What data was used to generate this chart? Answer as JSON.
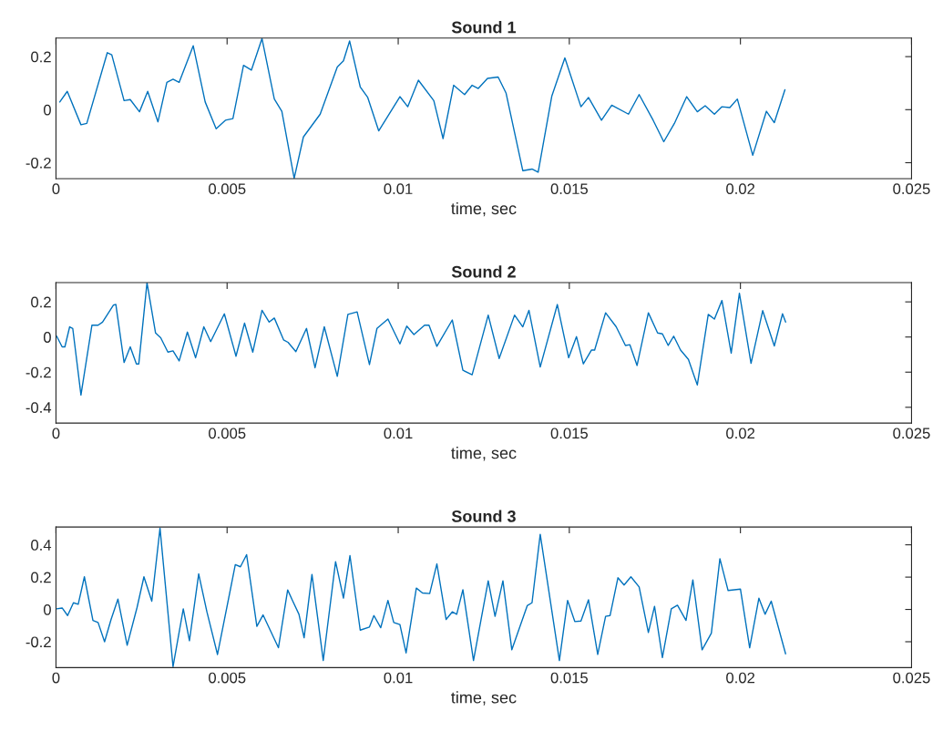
{
  "chart_data": [
    {
      "type": "line",
      "title": "Sound 1",
      "xlabel": "time, sec",
      "xlim": [
        0,
        0.025
      ],
      "xticks": [
        0,
        0.005,
        0.01,
        0.015,
        0.02,
        0.025
      ],
      "ylim": [
        -0.26,
        0.27
      ],
      "yticks": [
        -0.2,
        0,
        0.2
      ],
      "grid": false,
      "series": [
        {
          "color": "#0072bd",
          "x": [
            0.00011,
            0.00033,
            0.00073,
            0.0009,
            0.0015,
            0.00163,
            0.00199,
            0.00217,
            0.00244,
            0.00268,
            0.00298,
            0.00324,
            0.00342,
            0.0036,
            0.00401,
            0.00436,
            0.00468,
            0.00495,
            0.00517,
            0.00548,
            0.00571,
            0.00602,
            0.00638,
            0.0066,
            0.00696,
            0.00723,
            0.00772,
            0.00822,
            0.0084,
            0.00858,
            0.00889,
            0.00911,
            0.00943,
            0.01005,
            0.01028,
            0.01059,
            0.01104,
            0.01131,
            0.01162,
            0.01194,
            0.01216,
            0.01234,
            0.01261,
            0.01292,
            0.01315,
            0.01364,
            0.01391,
            0.01409,
            0.01449,
            0.01487,
            0.01534,
            0.01556,
            0.01594,
            0.01624,
            0.01673,
            0.01704,
            0.01745,
            0.01776,
            0.01807,
            0.01843,
            0.01874,
            0.01897,
            0.01924,
            0.01946,
            0.01969,
            0.01991,
            0.02036,
            0.02076,
            0.02099,
            0.0213
          ],
          "values": [
            0.029,
            0.069,
            -0.057,
            -0.052,
            0.215,
            0.207,
            0.034,
            0.038,
            -0.008,
            0.069,
            -0.046,
            0.103,
            0.115,
            0.103,
            0.241,
            0.029,
            -0.072,
            -0.04,
            -0.034,
            0.167,
            0.149,
            0.268,
            0.04,
            -0.006,
            -0.259,
            -0.103,
            -0.017,
            0.161,
            0.184,
            0.259,
            0.086,
            0.046,
            -0.08,
            0.049,
            0.011,
            0.111,
            0.034,
            -0.109,
            0.092,
            0.057,
            0.092,
            0.08,
            0.118,
            0.123,
            0.063,
            -0.23,
            -0.224,
            -0.236,
            0.052,
            0.195,
            0.011,
            0.046,
            -0.04,
            0.017,
            -0.017,
            0.057,
            -0.04,
            -0.121,
            -0.052,
            0.049,
            -0.008,
            0.015,
            -0.017,
            0.011,
            0.008,
            0.04,
            -0.172,
            -0.006,
            -0.049,
            0.075
          ]
        }
      ]
    },
    {
      "type": "line",
      "title": "Sound 2",
      "xlabel": "time, sec",
      "xlim": [
        0,
        0.025
      ],
      "xticks": [
        0,
        0.005,
        0.01,
        0.015,
        0.02,
        0.025
      ],
      "ylim": [
        -0.49,
        0.31
      ],
      "yticks": [
        -0.4,
        -0.2,
        0,
        0.2
      ],
      "grid": false,
      "series": [
        {
          "color": "#0072bd",
          "x": [
            2e-05,
            0.00018,
            0.00026,
            0.0004,
            0.00049,
            0.00073,
            0.00105,
            0.00123,
            0.00136,
            0.00168,
            0.00175,
            0.00199,
            0.00217,
            0.00235,
            0.00242,
            0.00266,
            0.00291,
            0.00306,
            0.00327,
            0.00342,
            0.0036,
            0.00384,
            0.00408,
            0.00432,
            0.00452,
            0.00492,
            0.00526,
            0.00551,
            0.00575,
            0.00602,
            0.00623,
            0.00638,
            0.00665,
            0.00678,
            0.00701,
            0.00732,
            0.00757,
            0.00784,
            0.00822,
            0.00853,
            0.0088,
            0.00916,
            0.00938,
            0.0097,
            0.01005,
            0.01025,
            0.01046,
            0.01077,
            0.0109,
            0.01113,
            0.01158,
            0.01189,
            0.01216,
            0.01263,
            0.01295,
            0.0134,
            0.01364,
            0.01382,
            0.01415,
            0.01465,
            0.01498,
            0.01521,
            0.01541,
            0.01565,
            0.01574,
            0.01606,
            0.01637,
            0.01664,
            0.01677,
            0.01698,
            0.01731,
            0.01758,
            0.01772,
            0.01789,
            0.01805,
            0.01825,
            0.01848,
            0.01874,
            0.01906,
            0.01924,
            0.01946,
            0.01973,
            0.01997,
            0.02031,
            0.02065,
            0.02099,
            0.02123,
            0.02132
          ],
          "values": [
            0.005,
            -0.056,
            -0.056,
            0.058,
            0.049,
            -0.33,
            0.067,
            0.067,
            0.085,
            0.182,
            0.185,
            -0.145,
            -0.056,
            -0.153,
            -0.153,
            0.309,
            0.023,
            -0.004,
            -0.086,
            -0.079,
            -0.136,
            0.028,
            -0.118,
            0.058,
            -0.026,
            0.132,
            -0.109,
            0.079,
            -0.086,
            0.152,
            0.085,
            0.108,
            -0.016,
            -0.03,
            -0.083,
            0.049,
            -0.175,
            0.058,
            -0.224,
            0.129,
            0.143,
            -0.157,
            0.049,
            0.102,
            -0.039,
            0.062,
            0.014,
            0.067,
            0.067,
            -0.053,
            0.097,
            -0.189,
            -0.215,
            0.125,
            -0.122,
            0.125,
            0.058,
            0.152,
            -0.171,
            0.185,
            -0.118,
            0.002,
            -0.153,
            -0.074,
            -0.074,
            0.138,
            0.058,
            -0.048,
            -0.044,
            -0.162,
            0.138,
            0.023,
            0.018,
            -0.048,
            0.005,
            -0.074,
            -0.127,
            -0.273,
            0.129,
            0.102,
            0.208,
            -0.092,
            0.249,
            -0.15,
            0.15,
            -0.051,
            0.132,
            0.085
          ]
        }
      ]
    },
    {
      "type": "line",
      "title": "Sound 3",
      "xlabel": "time, sec",
      "xlim": [
        0,
        0.025
      ],
      "xticks": [
        0,
        0.005,
        0.01,
        0.015,
        0.02,
        0.025
      ],
      "ylim": [
        -0.36,
        0.51
      ],
      "yticks": [
        -0.2,
        0,
        0.2,
        0.4
      ],
      "grid": false,
      "series": [
        {
          "color": "#0072bd",
          "x": [
            2e-05,
            0.00018,
            0.00034,
            0.00051,
            0.00065,
            0.00083,
            0.00108,
            0.00123,
            0.00142,
            0.00161,
            0.00181,
            0.00208,
            0.00237,
            0.00257,
            0.0028,
            0.00304,
            0.00342,
            0.00372,
            0.0039,
            0.00417,
            0.00441,
            0.00472,
            0.00524,
            0.00539,
            0.00557,
            0.00587,
            0.00605,
            0.0065,
            0.00677,
            0.00692,
            0.0071,
            0.00725,
            0.00748,
            0.00781,
            0.00817,
            0.0084,
            0.00859,
            0.00889,
            0.00916,
            0.00929,
            0.00949,
            0.0097,
            0.00987,
            0.01005,
            0.01023,
            0.01053,
            0.01071,
            0.01092,
            0.01113,
            0.0114,
            0.01158,
            0.01171,
            0.01189,
            0.0122,
            0.01263,
            0.01283,
            0.01306,
            0.01332,
            0.01377,
            0.01391,
            0.01415,
            0.01471,
            0.01495,
            0.01516,
            0.01534,
            0.01556,
            0.01583,
            0.01606,
            0.01619,
            0.01642,
            0.0166,
            0.0168,
            0.01704,
            0.01731,
            0.01749,
            0.01772,
            0.01798,
            0.01816,
            0.01841,
            0.01861,
            0.01888,
            0.01915,
            0.0194,
            0.01964,
            0.02,
            0.02027,
            0.02054,
            0.02072,
            0.0209,
            0.02132
          ],
          "values": [
            0.004,
            0.009,
            -0.038,
            0.041,
            0.032,
            0.202,
            -0.068,
            -0.081,
            -0.2,
            -0.062,
            0.064,
            -0.222,
            0.013,
            0.202,
            0.051,
            0.503,
            -0.354,
            0.004,
            -0.194,
            0.22,
            -0.015,
            -0.279,
            0.277,
            0.264,
            0.339,
            -0.105,
            -0.034,
            -0.237,
            0.121,
            0.051,
            -0.03,
            -0.175,
            0.217,
            -0.316,
            0.296,
            0.07,
            0.333,
            -0.128,
            -0.109,
            -0.038,
            -0.113,
            0.056,
            -0.081,
            -0.094,
            -0.269,
            0.132,
            0.102,
            0.098,
            0.282,
            -0.062,
            -0.015,
            -0.03,
            0.122,
            -0.316,
            0.177,
            -0.043,
            0.177,
            -0.25,
            0.023,
            0.041,
            0.465,
            -0.316,
            0.056,
            -0.075,
            -0.072,
            0.06,
            -0.279,
            -0.043,
            -0.038,
            0.196,
            0.151,
            0.202,
            0.139,
            -0.143,
            0.019,
            -0.298,
            0.004,
            0.026,
            -0.068,
            0.183,
            -0.25,
            -0.147,
            0.314,
            0.117,
            0.126,
            -0.237,
            0.07,
            -0.03,
            0.051,
            -0.275
          ]
        }
      ]
    }
  ]
}
